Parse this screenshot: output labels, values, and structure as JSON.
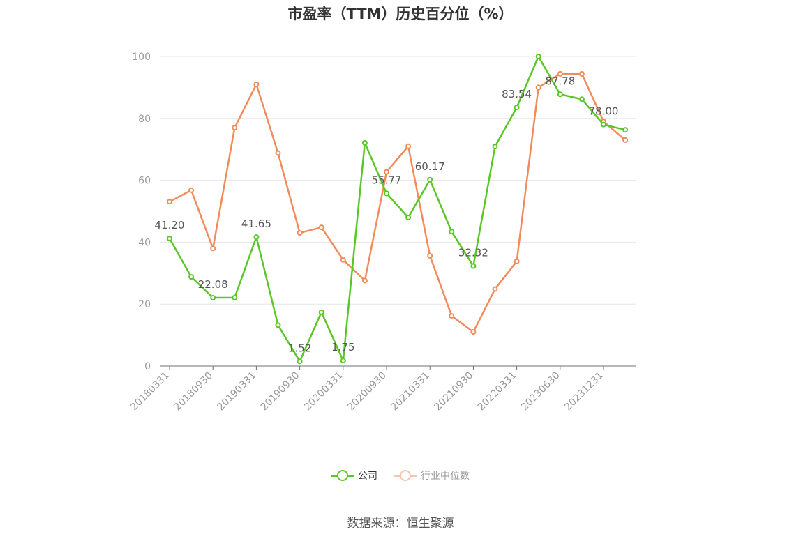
{
  "chart_data": {
    "type": "line",
    "title": "市盈率（TTM）历史百分位（%）",
    "xlabel": "",
    "ylabel": "",
    "ylim": [
      0,
      100
    ],
    "yticks": [
      0,
      20,
      40,
      60,
      80,
      100
    ],
    "grid": true,
    "legend_position": "bottom",
    "x": [
      "20180331",
      "20180630",
      "20180930",
      "20181231",
      "20190331",
      "20190630",
      "20190930",
      "20191231",
      "20200331",
      "20200630",
      "20200930",
      "20201231",
      "20210331",
      "20210630",
      "20210930",
      "20211231",
      "20220331",
      "20220630",
      "20230630",
      "20230930",
      "20231231",
      "20240331"
    ],
    "x_tick_labels": [
      "20180331",
      "20180930",
      "20190331",
      "20190930",
      "20200331",
      "20200930",
      "20210331",
      "20210930",
      "20220331",
      "20230630",
      "20231231"
    ],
    "series": [
      {
        "name": "公司",
        "color": "#5ac727",
        "values": [
          41.2,
          28.8,
          22.08,
          22.1,
          41.65,
          13.2,
          1.52,
          17.4,
          1.75,
          72.1,
          55.77,
          48.0,
          60.17,
          43.4,
          32.32,
          70.9,
          83.54,
          100.0,
          87.78,
          86.2,
          78.0,
          76.3
        ]
      },
      {
        "name": "行业中位数",
        "color": "#f28b5b",
        "values": [
          53.1,
          56.8,
          38.0,
          77.0,
          91.0,
          68.8,
          43.0,
          44.8,
          34.3,
          27.6,
          62.7,
          71.0,
          35.6,
          16.2,
          11.0,
          24.9,
          33.8,
          90.0,
          94.4,
          94.4,
          79.0,
          73.0
        ]
      }
    ],
    "data_labels": [
      {
        "series": 0,
        "index": 0,
        "text": "41.20"
      },
      {
        "series": 0,
        "index": 2,
        "text": "22.08"
      },
      {
        "series": 0,
        "index": 4,
        "text": "41.65"
      },
      {
        "series": 0,
        "index": 6,
        "text": "1.52"
      },
      {
        "series": 0,
        "index": 8,
        "text": "1.75"
      },
      {
        "series": 0,
        "index": 10,
        "text": "55.77"
      },
      {
        "series": 0,
        "index": 12,
        "text": "60.17"
      },
      {
        "series": 0,
        "index": 14,
        "text": "32.32"
      },
      {
        "series": 0,
        "index": 16,
        "text": "83.54"
      },
      {
        "series": 0,
        "index": 18,
        "text": "87.78"
      },
      {
        "series": 0,
        "index": 20,
        "text": "78.00"
      }
    ]
  },
  "legend": {
    "company_label": "公司",
    "industry_label": "行业中位数"
  },
  "source": "数据来源：恒生聚源"
}
